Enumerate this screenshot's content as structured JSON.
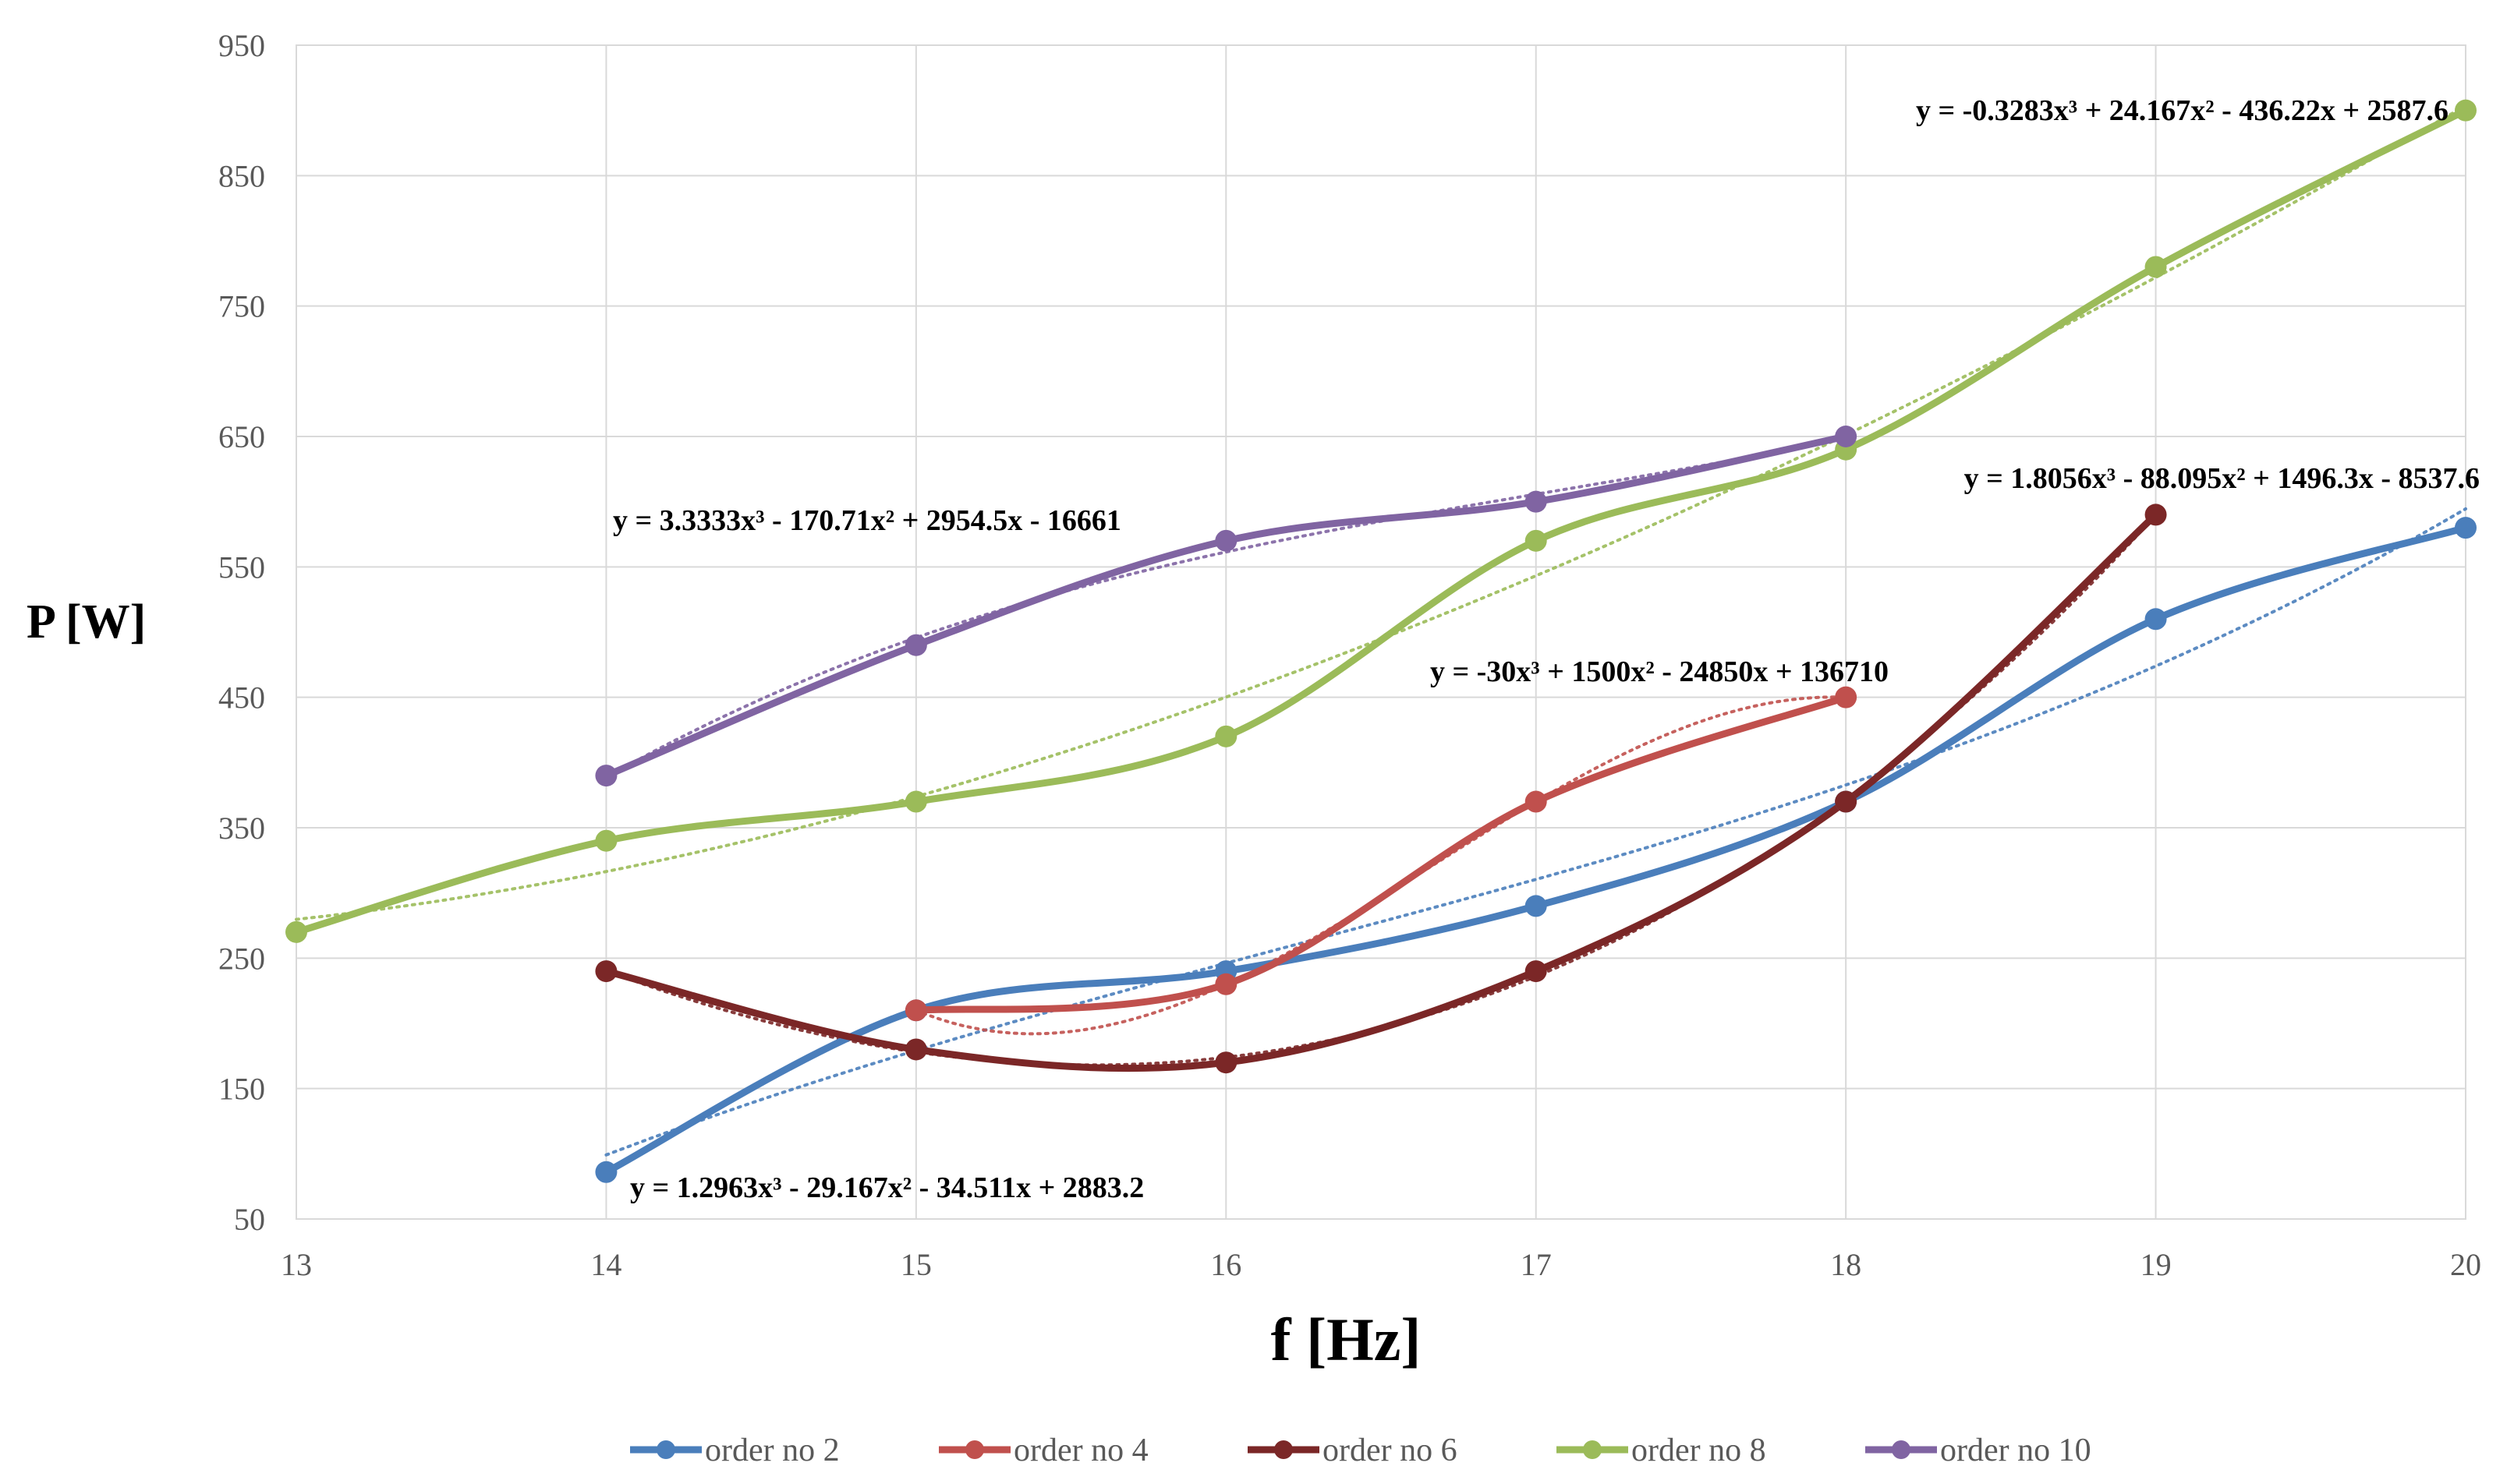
{
  "chart_data": {
    "type": "line",
    "title": "",
    "xlabel": "f [Hz]",
    "ylabel": "P [W]",
    "xlim": [
      13,
      20
    ],
    "ylim": [
      50,
      950
    ],
    "x_ticks": [
      "13",
      "14",
      "15",
      "16",
      "17",
      "18",
      "19",
      "20"
    ],
    "y_ticks": [
      "50",
      "150",
      "250",
      "350",
      "450",
      "550",
      "650",
      "750",
      "850",
      "950"
    ],
    "grid": true,
    "legend_position": "bottom",
    "series": [
      {
        "name": "order no 2",
        "color": "#4a7ebb",
        "x": [
          14,
          15,
          16,
          17,
          18,
          19,
          20
        ],
        "values": [
          86,
          210,
          240,
          290,
          370,
          510,
          580
        ],
        "trendline": "y = 1.2963x³ - 29.167x² - 34.511x + 2883.2"
      },
      {
        "name": "order no 4",
        "color": "#c0504d",
        "x": [
          15,
          16,
          17,
          18
        ],
        "values": [
          210,
          230,
          370,
          450
        ],
        "trendline": "y = -30x³ + 1500x² - 24850x + 136710"
      },
      {
        "name": "order no 6",
        "color": "#7b2727",
        "x": [
          14,
          15,
          16,
          17,
          18,
          19
        ],
        "values": [
          240,
          180,
          170,
          240,
          370,
          590
        ],
        "trendline": "y = 1.8056x³ - 88.095x² + 1496.3x - 8537.6"
      },
      {
        "name": "order no 8",
        "color": "#9bbb59",
        "x": [
          13,
          14,
          15,
          16,
          17,
          18,
          19,
          20
        ],
        "values": [
          270,
          340,
          370,
          420,
          570,
          640,
          780,
          900
        ],
        "trendline": "y = -0.3283x³ + 24.167x² - 436.22x + 2587.6"
      },
      {
        "name": "order no 10",
        "color": "#8064a2",
        "x": [
          14,
          15,
          16,
          17,
          18
        ],
        "values": [
          390,
          490,
          570,
          600,
          650
        ],
        "trendline": "y = 3.3333x³ - 170.71x² + 2954.5x - 16661"
      }
    ]
  }
}
